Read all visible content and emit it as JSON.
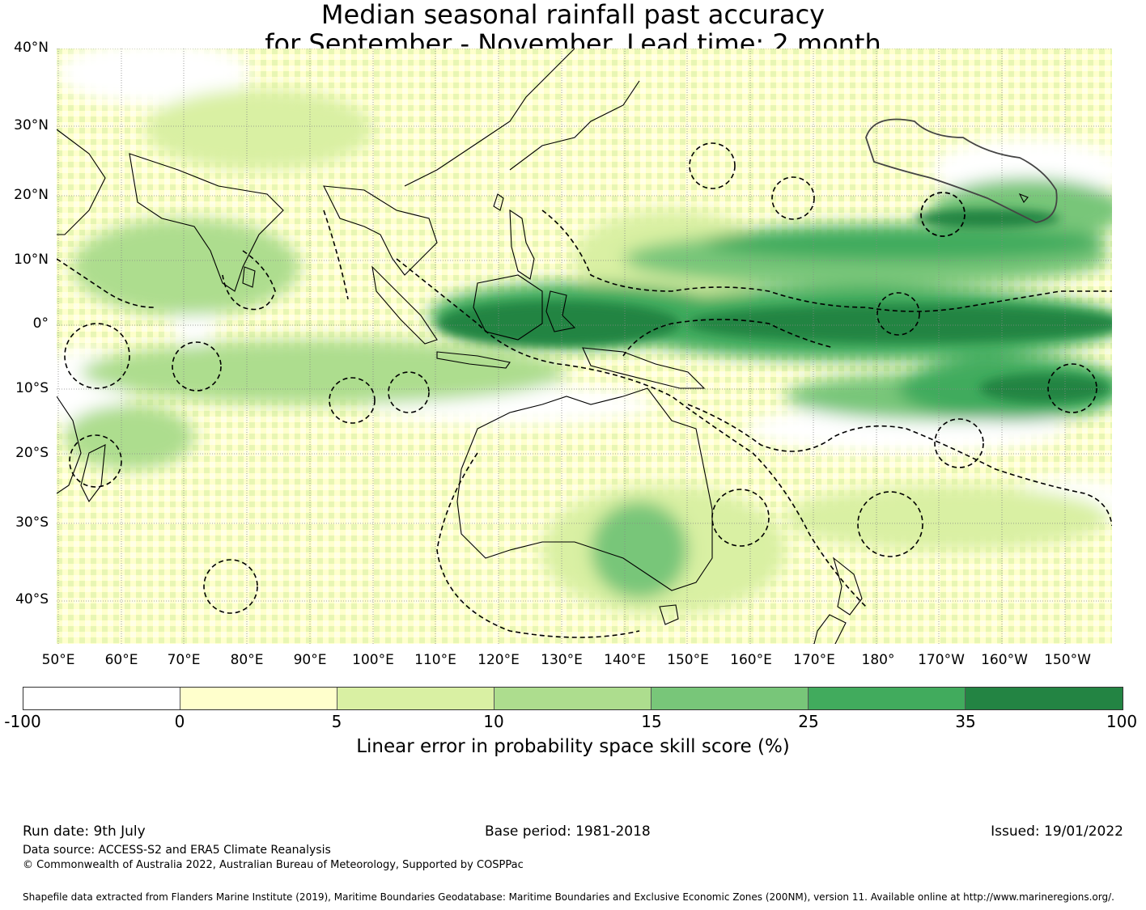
{
  "title_line1": "Median seasonal rainfall past accuracy",
  "title_line2": "for September - November. Lead time: 2 month",
  "map": {
    "lat_labels": [
      "40°N",
      "30°N",
      "20°N",
      "10°N",
      "0°",
      "10°S",
      "20°S",
      "30°S",
      "40°S"
    ],
    "lon_labels": [
      "50°E",
      "60°E",
      "70°E",
      "80°E",
      "90°E",
      "100°E",
      "110°E",
      "120°E",
      "130°E",
      "140°E",
      "150°E",
      "160°E",
      "170°E",
      "180°",
      "170°W",
      "160°W",
      "150°W"
    ]
  },
  "colorbar": {
    "ticks": [
      "-100",
      "0",
      "5",
      "10",
      "15",
      "25",
      "35",
      "100"
    ],
    "colors": [
      "#ffffff",
      "#ffffcc",
      "#d9f0a3",
      "#addd8e",
      "#78c679",
      "#41ab5d",
      "#238443"
    ],
    "label": "Linear error in probability space skill score (%)"
  },
  "footer": {
    "run_date": "Run date: 9th July",
    "base_period": "Base period: 1981-2018",
    "issued": "Issued: 19/01/2022",
    "data_source": "Data source: ACCESS-S2 and ERA5 Climate Reanalysis",
    "copyright": "© Commonwealth of Australia 2022, Australian Bureau of Meteorology, Supported by COSPPac",
    "shapefile": "Shapefile data extracted from Flanders Marine Institute (2019), Maritime Boundaries Geodatabase: Maritime Boundaries and Exclusive Economic Zones (200NM), version 11. Available online at http://www.marineregions.org/."
  }
}
